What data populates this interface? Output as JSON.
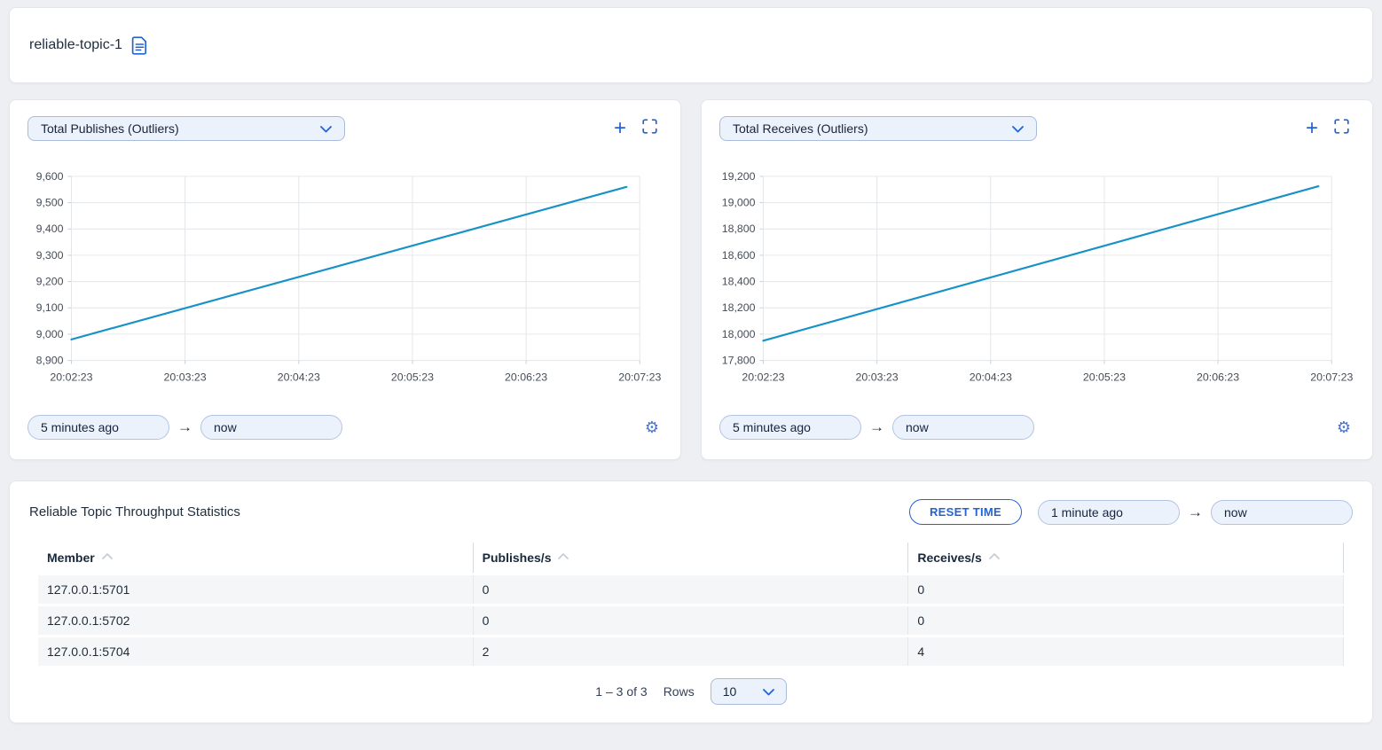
{
  "header": {
    "title": "reliable-topic-1"
  },
  "colors": {
    "accent": "#2463d2",
    "line": "#1792c7",
    "grid": "#e3e6ea",
    "tick": "#c9ced4",
    "control_bg": "#ecf2fc"
  },
  "charts": [
    {
      "selector_label": "Total Publishes (Outliers)",
      "from_value": "5 minutes ago",
      "to_value": "now"
    },
    {
      "selector_label": "Total Receives (Outliers)",
      "from_value": "5 minutes ago",
      "to_value": "now"
    }
  ],
  "chart_data": [
    {
      "type": "line",
      "title": "Total Publishes (Outliers)",
      "x": [
        "20:02:23",
        "20:07:16"
      ],
      "values": [
        8980,
        9560
      ],
      "xticks": [
        "20:02:23",
        "20:03:23",
        "20:04:23",
        "20:05:23",
        "20:06:23",
        "20:07:23"
      ],
      "ylim": [
        8900,
        9600
      ],
      "ytick_step": 100,
      "xlabel": "",
      "ylabel": "",
      "grid": true,
      "legend": false
    },
    {
      "type": "line",
      "title": "Total Receives (Outliers)",
      "x": [
        "20:02:23",
        "20:07:16"
      ],
      "values": [
        17950,
        19125
      ],
      "xticks": [
        "20:02:23",
        "20:03:23",
        "20:04:23",
        "20:05:23",
        "20:06:23",
        "20:07:23"
      ],
      "ylim": [
        17800,
        19200
      ],
      "ytick_step": 200,
      "xlabel": "",
      "ylabel": "",
      "grid": true,
      "legend": false
    }
  ],
  "stats_panel": {
    "title": "Reliable Topic Throughput Statistics",
    "reset_button": "RESET TIME",
    "from_value": "1 minute ago",
    "to_value": "now",
    "table": {
      "columns": [
        "Member",
        "Publishes/s",
        "Receives/s"
      ],
      "rows": [
        [
          "127.0.0.1:5701",
          "0",
          "0"
        ],
        [
          "127.0.0.1:5702",
          "0",
          "0"
        ],
        [
          "127.0.0.1:5704",
          "2",
          "4"
        ]
      ]
    },
    "pagination": {
      "range_label": "1 – 3 of 3",
      "rows_label": "Rows",
      "rows_per_page": "10"
    }
  }
}
